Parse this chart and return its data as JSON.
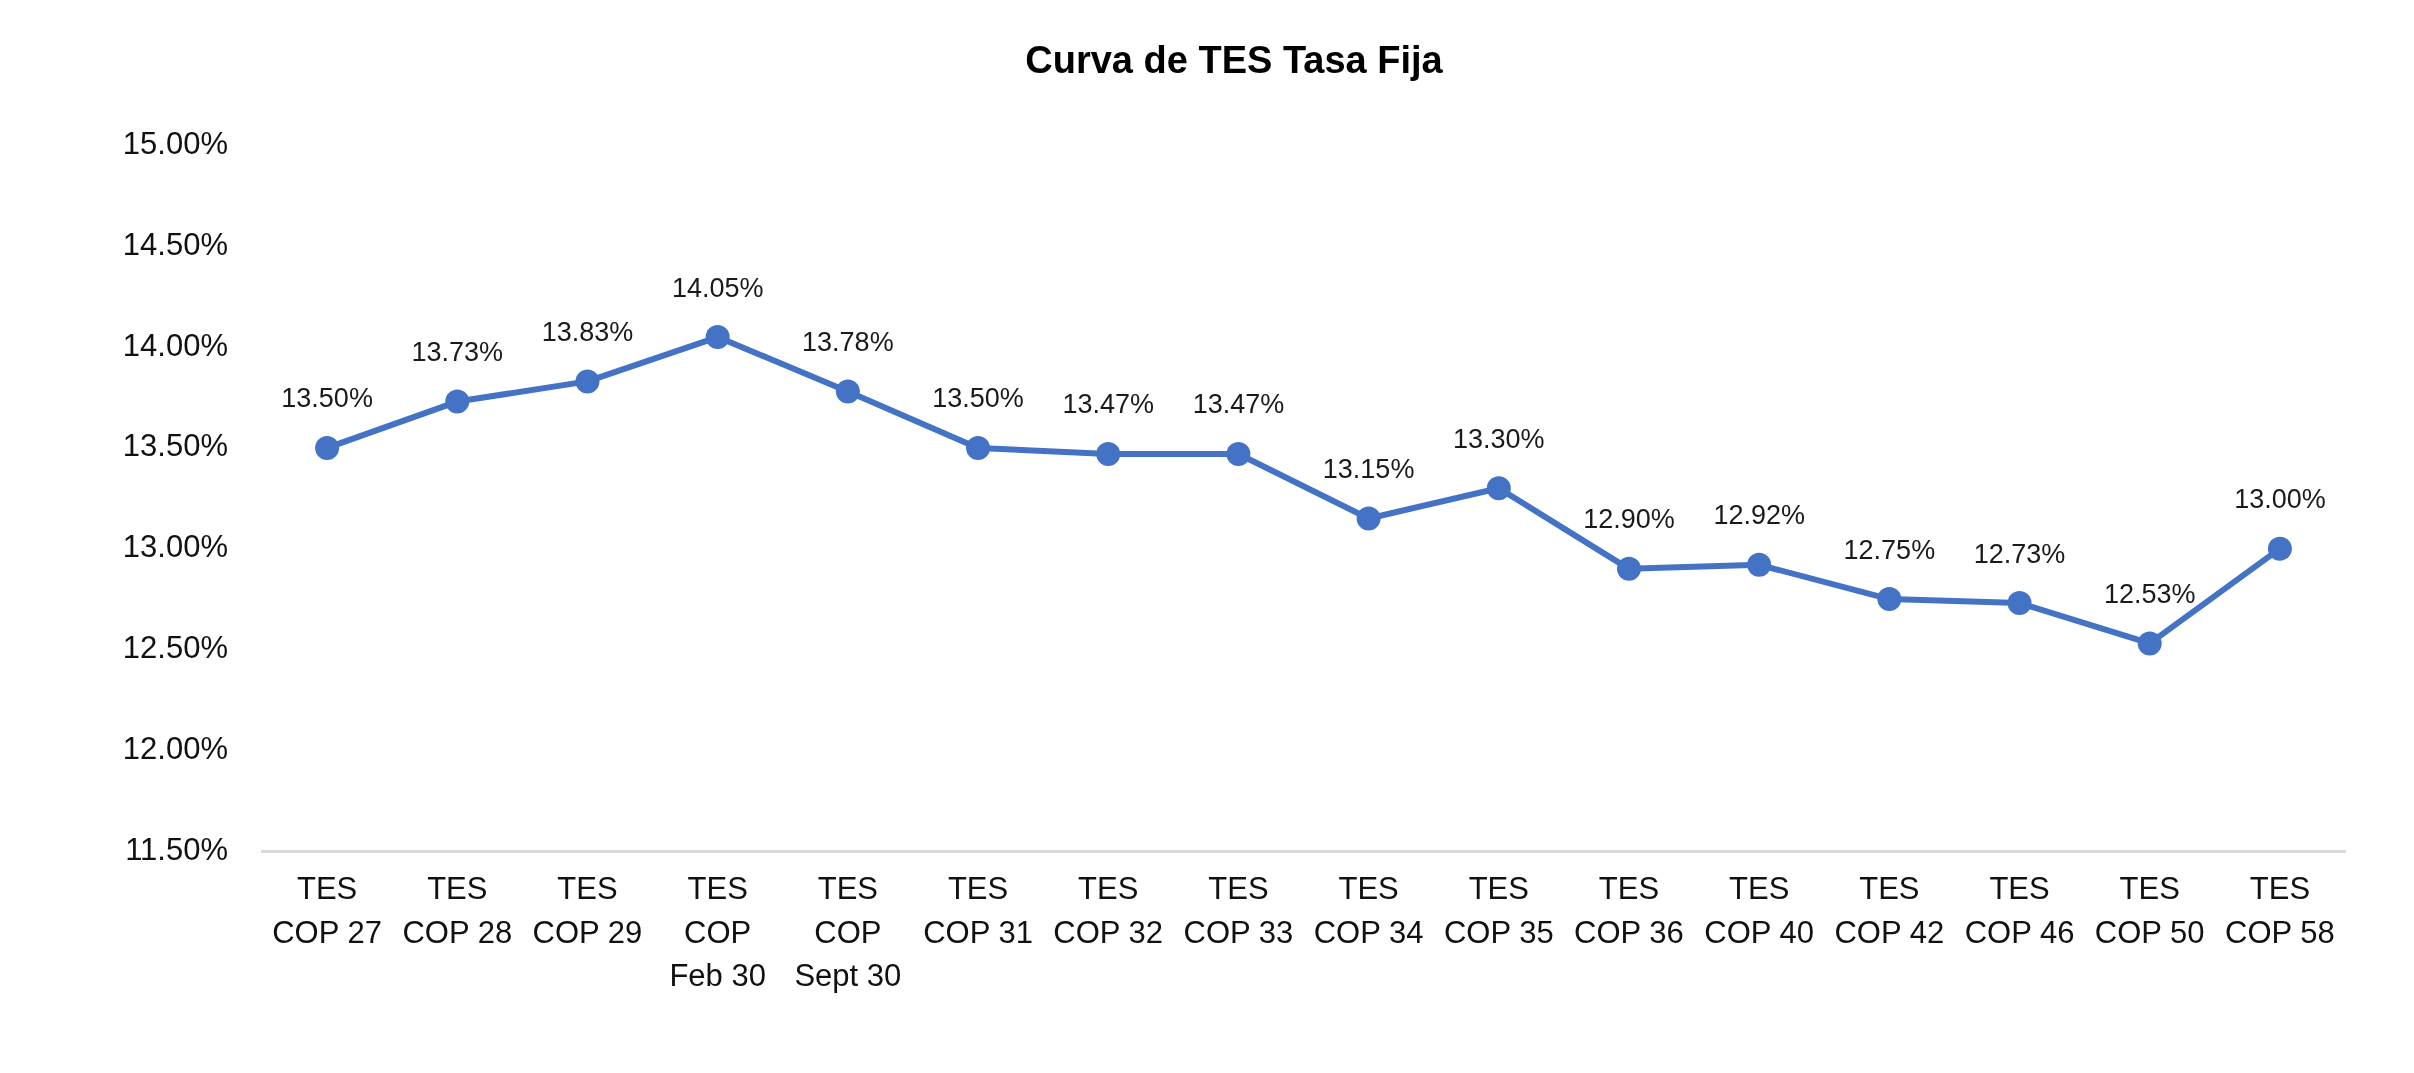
{
  "chart_data": {
    "type": "line",
    "title": "Curva de TES Tasa Fija",
    "categories": [
      "TES COP 27",
      "TES COP 28",
      "TES COP 29",
      "TES COP Feb 30",
      "TES COP Sept 30",
      "TES COP 31",
      "TES COP 32",
      "TES COP 33",
      "TES COP 34",
      "TES COP 35",
      "TES COP 36",
      "TES COP 40",
      "TES COP 42",
      "TES COP 46",
      "TES COP 50",
      "TES COP 58"
    ],
    "series": [
      {
        "color": "#4472c4",
        "values": [
          13.5,
          13.73,
          13.83,
          14.05,
          13.78,
          13.5,
          13.47,
          13.47,
          13.15,
          13.3,
          12.9,
          12.92,
          12.75,
          12.73,
          12.53,
          13.0
        ],
        "value_labels": [
          "13.50%",
          "13.73%",
          "13.83%",
          "14.05%",
          "13.78%",
          "13.50%",
          "13.47%",
          "13.47%",
          "13.15%",
          "13.30%",
          "12.90%",
          "12.92%",
          "12.75%",
          "12.73%",
          "12.53%",
          "13.00%"
        ]
      }
    ],
    "ylim": [
      11.5,
      15
    ],
    "yticks": [
      {
        "value": 11.5,
        "label": "11.50%"
      },
      {
        "value": 12,
        "label": "12.00%"
      },
      {
        "value": 12.5,
        "label": "12.50%"
      },
      {
        "value": 13,
        "label": "13.00%"
      },
      {
        "value": 13.5,
        "label": "13.50%"
      },
      {
        "value": 14,
        "label": "14.00%"
      },
      {
        "value": 14.5,
        "label": "14.50%"
      },
      {
        "value": 15,
        "label": "15.00%"
      }
    ],
    "marker": "circle",
    "line_style": "solid"
  }
}
